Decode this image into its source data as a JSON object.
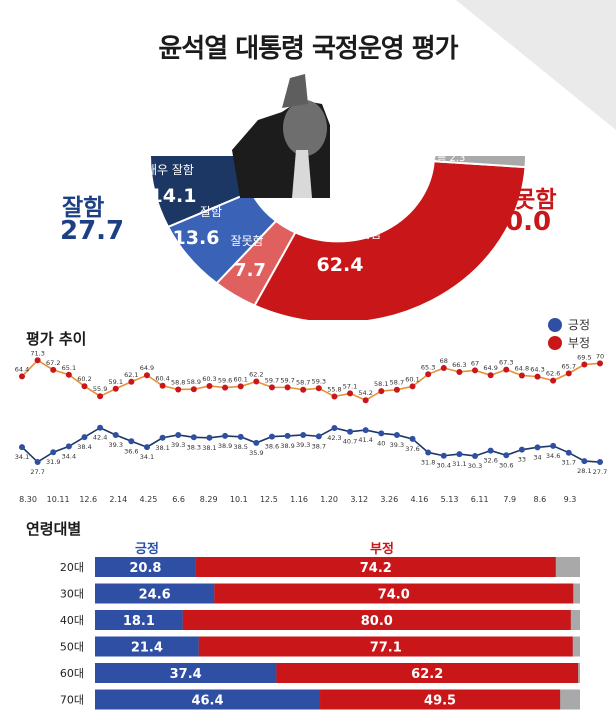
{
  "title": "윤석열 대통령 국정운영 평가",
  "colors": {
    "very_good": "#1d3764",
    "good": "#3a63b8",
    "bad": "#e06060",
    "very_bad": "#c91619",
    "dontknow": "#a9a9a9",
    "positive": "#2e4fa3",
    "negative": "#c91619"
  },
  "summary": {
    "good_label": "잘함",
    "good_value": "27.7",
    "bad_label": "잘 못함",
    "bad_value": "70.0"
  },
  "trend": {
    "title": "평가 추이",
    "legend_positive": "긍정",
    "legend_negative": "부정"
  },
  "age": {
    "title": "연령대별",
    "col_positive": "긍정",
    "col_negative": "부정"
  },
  "chart_data": [
    {
      "type": "pie",
      "title": "윤석열 대통령 국정운영 평가",
      "slices": [
        {
          "label": "매우 잘함",
          "value": 14.1
        },
        {
          "label": "잘함",
          "value": 13.6
        },
        {
          "label": "잘못함",
          "value": 7.7
        },
        {
          "label": "매우 잘못함",
          "value": 62.4
        },
        {
          "label": "잘모름",
          "value": 2.3
        }
      ]
    },
    {
      "type": "line",
      "title": "평가 추이",
      "x_ticks": [
        "8.30",
        "10.11",
        "12.6",
        "2.14",
        "4.25",
        "6.6",
        "8.29",
        "10.1",
        "12.5",
        "1.16",
        "1.20",
        "3.12",
        "3.26",
        "4.16",
        "5.13",
        "6.11",
        "7.9",
        "8.6",
        "9.3"
      ],
      "series": [
        {
          "name": "부정",
          "values": [
            64.4,
            71.3,
            67.2,
            65.1,
            60.2,
            55.9,
            59.1,
            62.1,
            64.9,
            60.4,
            58.8,
            58.9,
            60.3,
            59.6,
            60.1,
            62.2,
            59.7,
            59.7,
            58.7,
            59.3,
            55.8,
            57.1,
            54.2,
            58.1,
            58.7,
            60.1,
            65.3,
            68.0,
            66.3,
            67.0,
            64.9,
            67.3,
            64.8,
            64.3,
            62.6,
            65.7,
            69.5,
            70.0
          ]
        },
        {
          "name": "긍정",
          "values": [
            34.1,
            27.7,
            31.9,
            34.4,
            38.4,
            42.4,
            39.3,
            36.6,
            34.1,
            38.1,
            39.3,
            38.3,
            38.1,
            38.9,
            38.5,
            35.9,
            38.6,
            38.9,
            39.3,
            38.7,
            42.3,
            40.7,
            41.4,
            40.0,
            39.3,
            37.6,
            31.8,
            30.4,
            31.1,
            30.3,
            32.6,
            30.6,
            33.0,
            34.0,
            34.6,
            31.7,
            28.1,
            27.7
          ]
        }
      ]
    },
    {
      "type": "bar",
      "title": "연령대별",
      "stacked": true,
      "orientation": "horizontal",
      "categories": [
        "20대",
        "30대",
        "40대",
        "50대",
        "60대",
        "70대"
      ],
      "series": [
        {
          "name": "긍정",
          "values": [
            20.8,
            24.6,
            18.1,
            21.4,
            37.4,
            46.4
          ]
        },
        {
          "name": "부정",
          "values": [
            74.2,
            74.0,
            80.0,
            77.1,
            62.2,
            49.5
          ]
        }
      ]
    }
  ]
}
